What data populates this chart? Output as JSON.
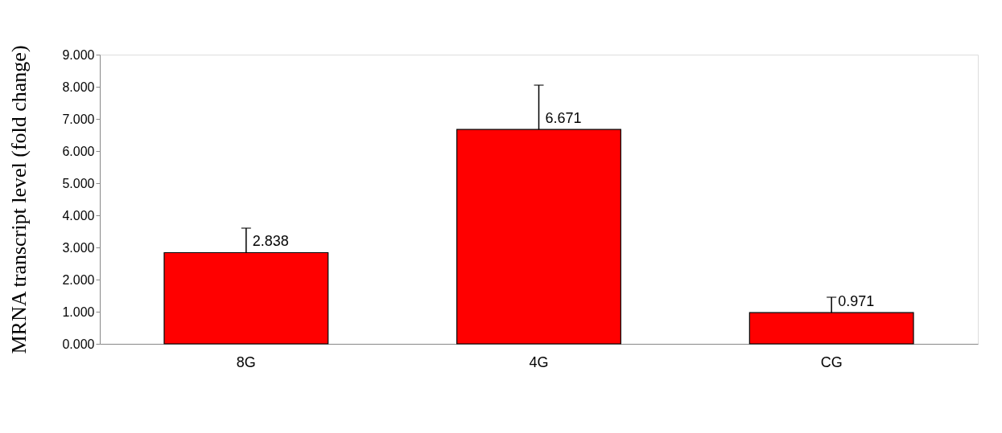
{
  "chart_data": {
    "type": "bar",
    "ylabel": "MRNA transcript level (fold change)",
    "categories": [
      "8G",
      "4G",
      "CG"
    ],
    "values": [
      2.838,
      6.671,
      0.971
    ],
    "errors": [
      [
        2.838,
        3.6
      ],
      [
        6.671,
        8.05
      ],
      [
        0.971,
        1.45
      ]
    ],
    "color": "#ff0000",
    "ylim": [
      0,
      9
    ],
    "yticks": [
      {
        "value": 0,
        "label": "0.000"
      },
      {
        "value": 1,
        "label": "1.000"
      },
      {
        "value": 2,
        "label": "2.000"
      },
      {
        "value": 3,
        "label": "3.000"
      },
      {
        "value": 4,
        "label": "4.000"
      },
      {
        "value": 5,
        "label": "5.000"
      },
      {
        "value": 6,
        "label": "6.000"
      },
      {
        "value": 7,
        "label": "7.000"
      },
      {
        "value": 8,
        "label": "8.000"
      },
      {
        "value": 9,
        "label": "9.000"
      }
    ],
    "data_labels": true,
    "grid": false
  }
}
